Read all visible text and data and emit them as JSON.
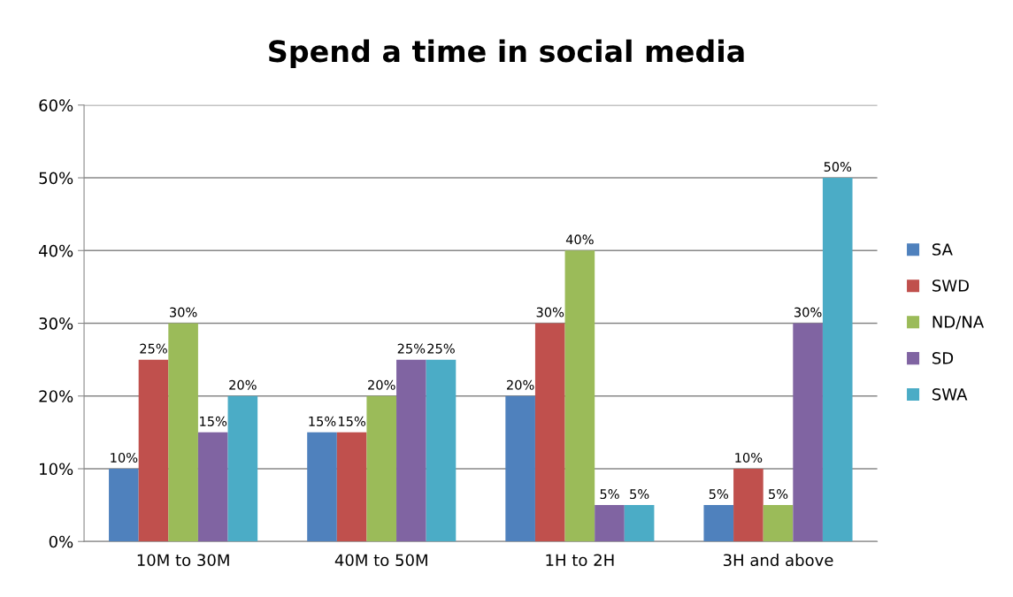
{
  "chart_data": {
    "type": "bar",
    "title": "Spend a time in social media",
    "categories": [
      "10M to 30M",
      "40M to 50M",
      "1H to 2H",
      "3H and above"
    ],
    "series": [
      {
        "name": "SA",
        "color": "#4f81bd",
        "values": [
          10,
          15,
          20,
          5
        ],
        "value_labels": [
          "10%",
          "15%",
          "20%",
          "5%"
        ]
      },
      {
        "name": "SWD",
        "color": "#c0504d",
        "values": [
          25,
          15,
          30,
          10
        ],
        "value_labels": [
          "25%",
          "15%",
          "30%",
          "10%"
        ]
      },
      {
        "name": "ND/NA",
        "color": "#9bbb59",
        "values": [
          30,
          20,
          40,
          5
        ],
        "value_labels": [
          "30%",
          "20%",
          "40%",
          "5%"
        ]
      },
      {
        "name": "SD",
        "color": "#8064a2",
        "values": [
          15,
          25,
          5,
          30
        ],
        "value_labels": [
          "15%",
          "25%",
          "5%",
          "30%"
        ]
      },
      {
        "name": "SWA",
        "color": "#4bacc6",
        "values": [
          20,
          25,
          5,
          50
        ],
        "value_labels": [
          "20%",
          "25%",
          "5%",
          "50%"
        ]
      }
    ],
    "ylim": [
      0,
      60
    ],
    "yticks": [
      {
        "value": 0,
        "label": "0%"
      },
      {
        "value": 10,
        "label": "10%"
      },
      {
        "value": 20,
        "label": "20%"
      },
      {
        "value": 30,
        "label": "30%"
      },
      {
        "value": 40,
        "label": "40%"
      },
      {
        "value": 50,
        "label": "50%"
      },
      {
        "value": 60,
        "label": "60%"
      }
    ],
    "grid": "y",
    "legend": "right"
  }
}
